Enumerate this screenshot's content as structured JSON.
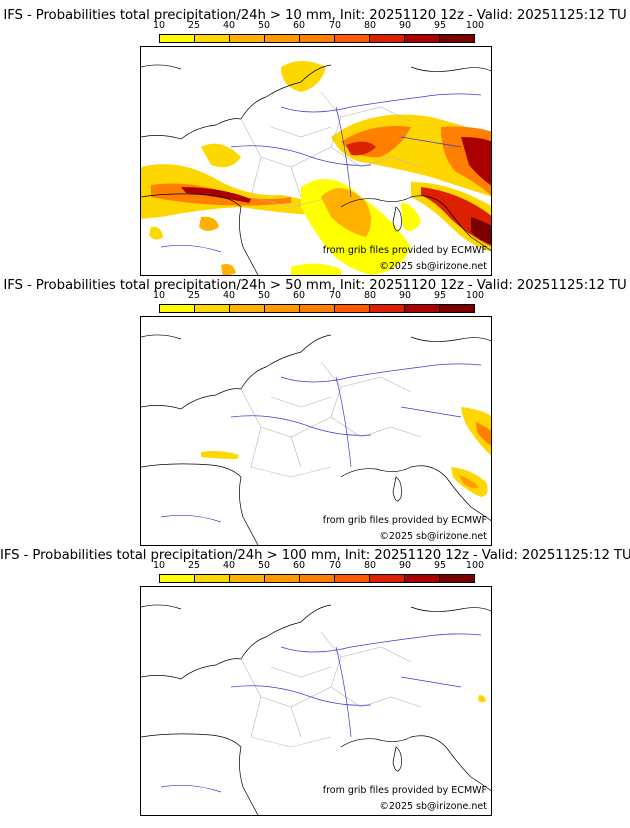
{
  "colorbar": {
    "ticks": [
      "10",
      "25",
      "40",
      "50",
      "60",
      "70",
      "80",
      "90",
      "95",
      "100"
    ],
    "colors": [
      "#ffff00",
      "#ffd700",
      "#ffb000",
      "#ff9a00",
      "#ff7f00",
      "#ff5a00",
      "#dd2000",
      "#aa0000",
      "#7a0000"
    ]
  },
  "map_colors": {
    "land_border": "#000000",
    "regions": "#b8b8b8",
    "rivers": "#3a3ad8"
  },
  "panels": [
    {
      "title": "IFS - Probabilities total precipitation/24h > 10 mm, Init: 20251120 12z - Valid: 20251125:12 TU",
      "source": "from grib files provided by ECMWF",
      "copyright": "©2025 sb@irizone.net",
      "coverage": "high"
    },
    {
      "title": "IFS - Probabilities total precipitation/24h > 50 mm, Init: 20251120 12z - Valid: 20251125:12 TU",
      "source": "from grib files provided by ECMWF",
      "copyright": "©2025 sb@irizone.net",
      "coverage": "medium"
    },
    {
      "title": "IFS - Probabilities total precipitation/24h > 100 mm, Init: 20251120 12z - Valid: 20251125:12 TU",
      "source": "from grib files provided by ECMWF",
      "copyright": "©2025 sb@irizone.net",
      "coverage": "low"
    }
  ]
}
